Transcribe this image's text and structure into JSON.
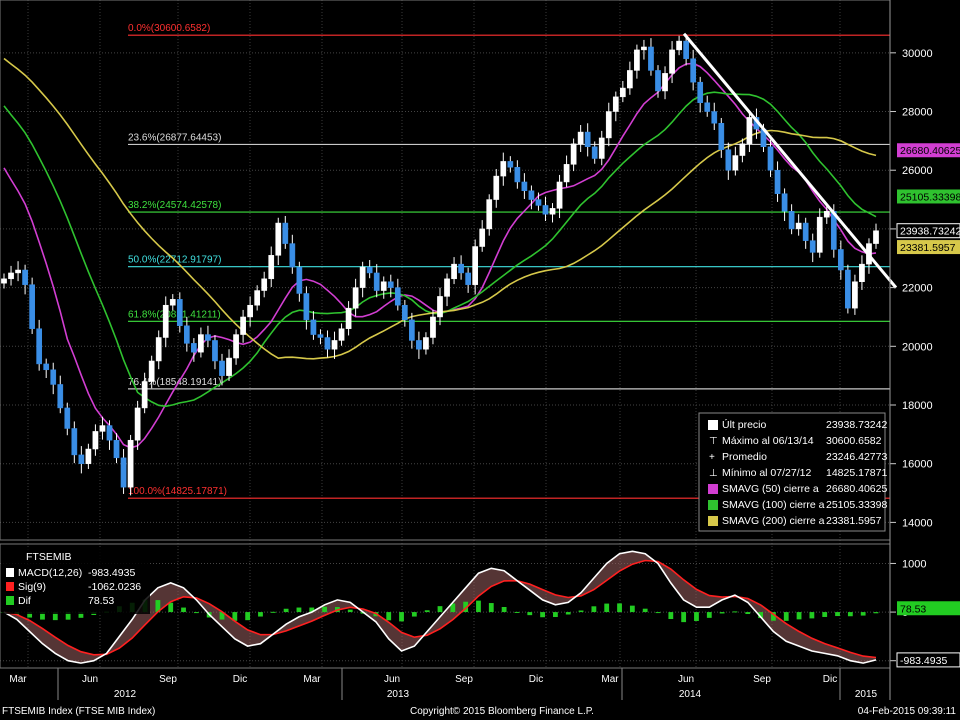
{
  "footer": {
    "index_name": "FTSEMIB Index (FTSE MIB Index)",
    "copyright": "Copyright© 2015 Bloomberg Finance L.P.",
    "timestamp": "04-Feb-2015 09:39:11"
  },
  "colors": {
    "background": "#000000",
    "up_candle": "#ffffff",
    "down_candle": "#3a8ee6",
    "sma50": "#d23ed2",
    "sma100": "#2fc22f",
    "sma200": "#d6c84a",
    "fib_extreme": "#ff3030",
    "fib_mid": "#3ee03e",
    "fib_50": "#40e0e0",
    "fib_other": "#c8c8c8",
    "trendline": "#ffffff",
    "macd_line": "#ffffff",
    "signal_line": "#ff2020",
    "diff_bars": "#22cc22"
  },
  "chart_data": [
    {
      "type": "candlestick",
      "ylim": [
        13400,
        31800
      ],
      "y_ticks": [
        14000,
        16000,
        18000,
        20000,
        22000,
        24000,
        26000,
        28000,
        30000
      ],
      "x_tick_labels": [
        "Mar",
        "Jun",
        "Sep",
        "Dic",
        "Mar",
        "Jun",
        "Sep",
        "Dic",
        "Mar",
        "Jun",
        "Sep",
        "Dic"
      ],
      "x_year_labels": [
        "2012",
        "2013",
        "2014",
        "2015"
      ],
      "fibonacci_levels": [
        {
          "label": "0.0%(30600.6582)",
          "value": 30600.6582
        },
        {
          "label": "23.6%(26877.64453)",
          "value": 26877.64453
        },
        {
          "label": "38.2%(24574.42578)",
          "value": 24574.42578
        },
        {
          "label": "50.0%(22712.91797)",
          "value": 22712.91797
        },
        {
          "label": "61.8%(20851.41211)",
          "value": 20851.41211
        },
        {
          "label": "76.4%(18548.19141)",
          "value": 18548.19141
        },
        {
          "label": "100.0%(14825.17871)",
          "value": 14825.17871
        }
      ],
      "right_labels": [
        {
          "text": "26680.40625",
          "value": 26680.40625,
          "color": "#d23ed2"
        },
        {
          "text": "25105.33398",
          "value": 25105.33398,
          "color": "#2fc22f"
        },
        {
          "text": "23938.73242",
          "value": 23938.73242,
          "color": "#000000"
        },
        {
          "text": "23381.5957",
          "value": 23381.5957,
          "color": "#d6c84a"
        }
      ],
      "legend": {
        "placement": "bottom-right",
        "entries": [
          {
            "label": "Últ precio",
            "value": "23938.73242",
            "marker": "box-white"
          },
          {
            "label": "Máximo al 06/13/14",
            "value": "30600.6582",
            "marker": "tee"
          },
          {
            "label": "Promedio",
            "value": "23246.42773",
            "marker": "cross"
          },
          {
            "label": "Mínimo al 07/27/12",
            "value": "14825.17871",
            "marker": "down-tee"
          },
          {
            "label": "SMAVG (50) cierre a",
            "value": "26680.40625",
            "marker": "box-magenta"
          },
          {
            "label": "SMAVG (100) cierre a",
            "value": "25105.33398",
            "marker": "box-green"
          },
          {
            "label": "SMAVG (200) cierre a",
            "value": "23381.5957",
            "marker": "box-yellow"
          }
        ]
      },
      "weekly_close": [
        22300,
        22500,
        22600,
        22100,
        20600,
        19400,
        19200,
        18700,
        17900,
        17200,
        16300,
        16000,
        16500,
        17100,
        17300,
        16800,
        16200,
        15200,
        16800,
        17900,
        18800,
        19500,
        20300,
        21400,
        21600,
        20700,
        20100,
        19800,
        20400,
        20200,
        19500,
        19000,
        19600,
        20400,
        21000,
        21400,
        21900,
        22300,
        23100,
        24200,
        23500,
        22700,
        21800,
        20900,
        20400,
        20300,
        19900,
        20200,
        20600,
        21300,
        22000,
        22700,
        22500,
        21900,
        22200,
        22000,
        21400,
        20900,
        20200,
        19900,
        20300,
        21000,
        21700,
        22300,
        22800,
        22500,
        22100,
        23400,
        24000,
        25000,
        25800,
        26300,
        26100,
        25600,
        25300,
        25000,
        24800,
        24500,
        24700,
        25600,
        26200,
        26900,
        27300,
        26800,
        26400,
        27100,
        28000,
        28500,
        28800,
        29400,
        30100,
        30200,
        29400,
        28700,
        29300,
        30100,
        30400,
        29800,
        29000,
        28300,
        28000,
        27600,
        26700,
        26000,
        26500,
        26900,
        27800,
        27400,
        26800,
        26000,
        25200,
        24600,
        24000,
        24200,
        23600,
        23200,
        24400,
        24600,
        23300,
        22600,
        21300,
        22200,
        22800,
        23500,
        23938.73242
      ]
    },
    {
      "type": "macd",
      "title": "FTSEMIB",
      "ylim": [
        -1150,
        1400
      ],
      "y_ticks": [
        -1000,
        0,
        1000
      ],
      "legend": [
        {
          "label": "MACD(12,26)",
          "value": "-983.4935",
          "color": "#ffffff"
        },
        {
          "label": "Sig(9)",
          "value": "-1062.0236",
          "color": "#ff2020"
        },
        {
          "label": "Dif",
          "value": "78.53",
          "color": "#22cc22"
        }
      ],
      "right_labels": [
        {
          "text": "78.53",
          "value": 78.53,
          "color": "#22cc22"
        },
        {
          "text": "-983.4935",
          "value": -983.4935,
          "color": "#ffffff"
        }
      ],
      "macd_line_approx": [
        0,
        -150,
        -400,
        -650,
        -850,
        -1000,
        -1050,
        -1000,
        -850,
        -500,
        -150,
        250,
        500,
        600,
        500,
        250,
        -50,
        -300,
        -550,
        -700,
        -650,
        -450,
        -250,
        -100,
        0,
        150,
        250,
        200,
        0,
        -200,
        -550,
        -800,
        -700,
        -400,
        -100,
        200,
        500,
        800,
        900,
        850,
        650,
        450,
        250,
        150,
        200,
        400,
        700,
        1000,
        1200,
        1250,
        1200,
        1000,
        600,
        250,
        100,
        100,
        250,
        350,
        200,
        -100,
        -400,
        -600,
        -700,
        -800,
        -850,
        -900,
        -1000,
        -1050,
        -983
      ]
    }
  ]
}
